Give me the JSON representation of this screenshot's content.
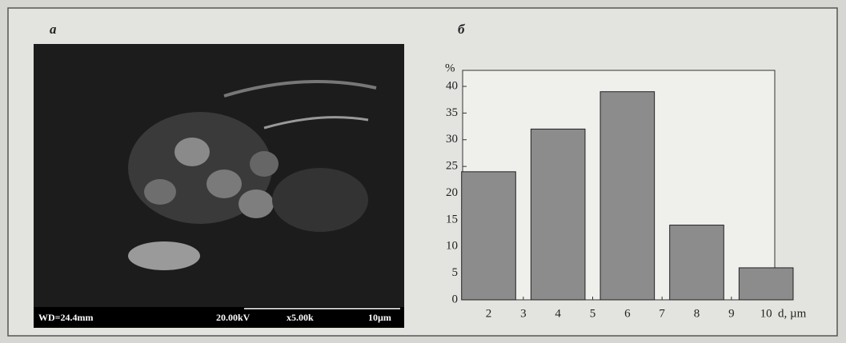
{
  "panel_a": {
    "label": "a",
    "info": [
      "WD=24.4mm",
      "20.00kV",
      "x5.00k",
      "10µm"
    ]
  },
  "chart_data": {
    "type": "bar",
    "title": "б",
    "ylabel": "%",
    "xlabel": "d, µm",
    "x": [
      2,
      4,
      6,
      8,
      10
    ],
    "values": [
      24,
      32,
      39,
      14,
      6
    ],
    "color": "#8c8c8c",
    "xlim": [
      1.25,
      10.25
    ],
    "xticks": [
      2,
      3,
      4,
      5,
      6,
      7,
      8,
      9,
      10
    ],
    "ylim": [
      0,
      43
    ],
    "yticks": [
      0,
      5,
      10,
      15,
      20,
      25,
      30,
      35,
      40
    ],
    "grid": false
  }
}
